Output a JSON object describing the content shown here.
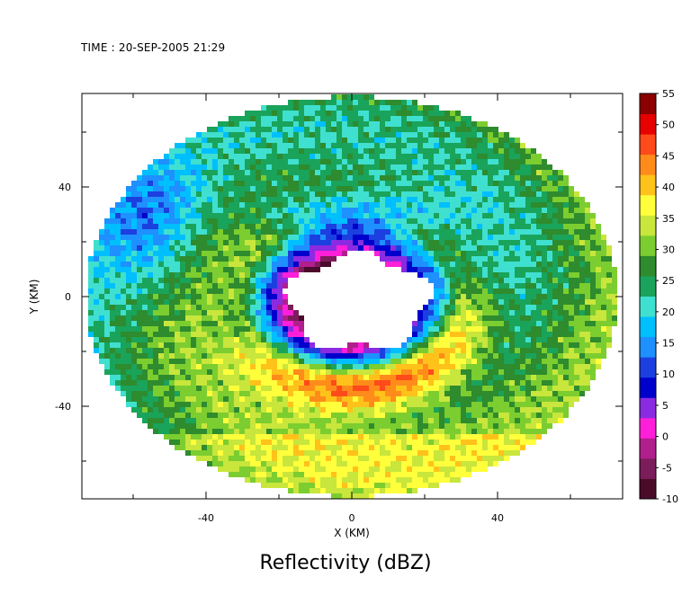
{
  "header": {
    "time_label": "TIME : 20-SEP-2005 21:29"
  },
  "chart_data": {
    "type": "heatmap",
    "title": "Reflectivity (dBZ)",
    "xlabel": "X (KM)",
    "ylabel": "Y (KM)",
    "xlim": [
      -74,
      74
    ],
    "ylim": [
      -74,
      74
    ],
    "x_ticks": [
      -40,
      0,
      40
    ],
    "y_ticks": [
      -40,
      0,
      40
    ],
    "colorbar": {
      "label_unit": "dBZ",
      "range": [
        -10,
        55
      ],
      "ticks": [
        55,
        50,
        45,
        40,
        35,
        30,
        25,
        20,
        15,
        10,
        5,
        0,
        -5,
        -10
      ],
      "colors": [
        "#4a0b2a",
        "#7b1d5a",
        "#b01f8c",
        "#ff1fd9",
        "#8a2be2",
        "#0000cd",
        "#1c3fe0",
        "#1e90ff",
        "#00bfff",
        "#40e0d0",
        "#1aa35a",
        "#2e8b2e",
        "#7ccd2f",
        "#c8e63c",
        "#ffff3c",
        "#ffc21a",
        "#ff8c1a",
        "#ff4a1a",
        "#e60000",
        "#8b0000"
      ]
    },
    "field": {
      "domain_radius_km": 73,
      "eye_radius_km": 23,
      "note": "hurricane eyewall reflectivity; intense band (45-52 dBZ) south/southeast of eye, weaker cyan/blue (15-25 dBZ) to north and far west"
    }
  }
}
